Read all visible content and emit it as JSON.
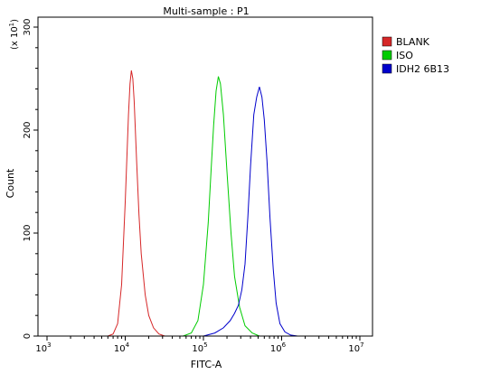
{
  "chart_data": {
    "type": "line",
    "title": "Multi-sample : P1",
    "xlabel": "FITC-A",
    "ylabel": "Count",
    "y_multiplier_label": "(x 10",
    "y_multiplier_exp": "1",
    "x_scale": "log",
    "xlim": [
      1000,
      10000000
    ],
    "ylim": [
      0,
      300
    ],
    "x_ticks": [
      {
        "base": "10",
        "exp": "3",
        "value": 1000
      },
      {
        "base": "10",
        "exp": "4",
        "value": 10000
      },
      {
        "base": "10",
        "exp": "5",
        "value": 100000
      },
      {
        "base": "10",
        "exp": "6",
        "value": 1000000
      },
      {
        "base": "10",
        "exp": "7",
        "value": 10000000
      }
    ],
    "y_ticks": [
      {
        "label": "0",
        "value": 0
      },
      {
        "label": "100",
        "value": 100
      },
      {
        "label": "200",
        "value": 200
      },
      {
        "label": "300",
        "value": 300
      }
    ],
    "legend_position": "right",
    "series": [
      {
        "name": "BLANK",
        "color": "#d62728",
        "points": [
          [
            6000,
            0
          ],
          [
            7000,
            2
          ],
          [
            8000,
            12
          ],
          [
            9000,
            50
          ],
          [
            10000,
            130
          ],
          [
            11000,
            215
          ],
          [
            11500,
            245
          ],
          [
            12000,
            258
          ],
          [
            12500,
            250
          ],
          [
            13000,
            228
          ],
          [
            14000,
            170
          ],
          [
            15000,
            118
          ],
          [
            16000,
            80
          ],
          [
            18000,
            40
          ],
          [
            20000,
            20
          ],
          [
            23000,
            8
          ],
          [
            27000,
            2
          ],
          [
            32000,
            0
          ]
        ]
      },
      {
        "name": "ISO",
        "color": "#00cc00",
        "points": [
          [
            55000,
            0
          ],
          [
            70000,
            3
          ],
          [
            85000,
            15
          ],
          [
            100000,
            50
          ],
          [
            115000,
            110
          ],
          [
            125000,
            160
          ],
          [
            135000,
            205
          ],
          [
            145000,
            238
          ],
          [
            155000,
            252
          ],
          [
            165000,
            245
          ],
          [
            180000,
            215
          ],
          [
            200000,
            160
          ],
          [
            225000,
            100
          ],
          [
            250000,
            58
          ],
          [
            290000,
            28
          ],
          [
            340000,
            10
          ],
          [
            420000,
            3
          ],
          [
            520000,
            0
          ]
        ]
      },
      {
        "name": "IDH2 6B13",
        "color": "#0000cc",
        "points": [
          [
            100000,
            0
          ],
          [
            140000,
            3
          ],
          [
            180000,
            8
          ],
          [
            220000,
            15
          ],
          [
            250000,
            22
          ],
          [
            280000,
            30
          ],
          [
            310000,
            45
          ],
          [
            340000,
            70
          ],
          [
            370000,
            115
          ],
          [
            400000,
            165
          ],
          [
            440000,
            215
          ],
          [
            480000,
            232
          ],
          [
            520000,
            242
          ],
          [
            560000,
            232
          ],
          [
            600000,
            210
          ],
          [
            650000,
            170
          ],
          [
            710000,
            115
          ],
          [
            780000,
            65
          ],
          [
            850000,
            32
          ],
          [
            950000,
            12
          ],
          [
            1100000,
            4
          ],
          [
            1300000,
            1
          ],
          [
            1600000,
            0
          ]
        ]
      }
    ]
  }
}
